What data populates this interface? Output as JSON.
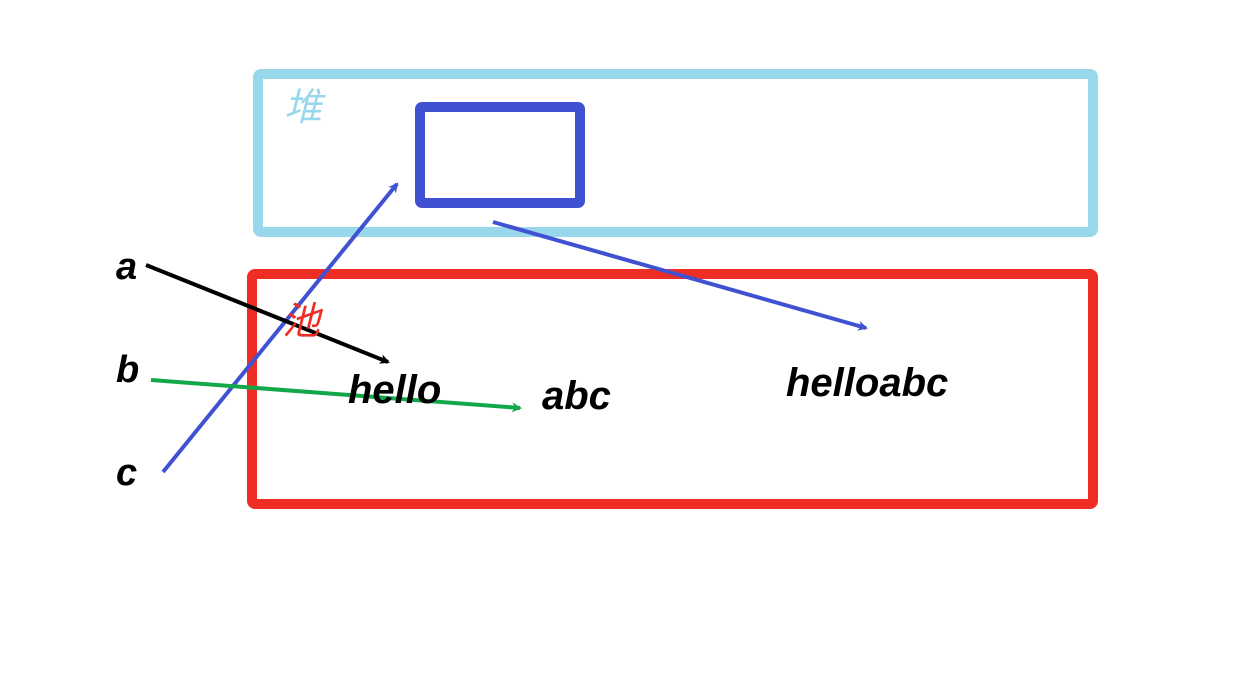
{
  "regions": {
    "heap": {
      "label": "堆",
      "color": "#99d8ea"
    },
    "pool": {
      "label": "池",
      "color": "#ee2e24"
    }
  },
  "heap_object": {
    "color": "#4052d1"
  },
  "variables": {
    "a": "a",
    "b": "b",
    "c": "c"
  },
  "pool_values": {
    "hello": "hello",
    "abc": "abc",
    "helloabc": "helloabc"
  },
  "arrows": {
    "a_color": "#000000",
    "b_color": "#12a84a",
    "c_color": "#4052d1",
    "heap_to_pool_color": "#4052d1"
  }
}
